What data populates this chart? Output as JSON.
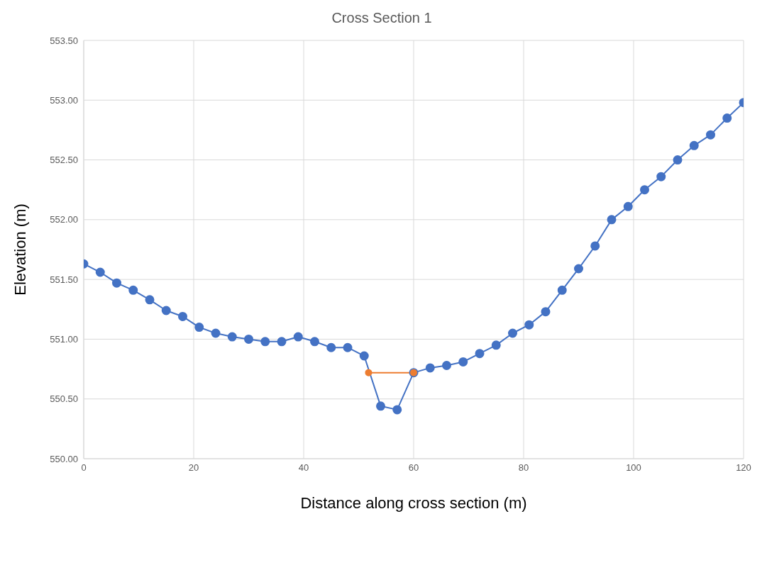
{
  "chart_data": {
    "type": "line",
    "title": "Cross Section 1",
    "xlabel": "Distance along cross section (m)",
    "ylabel": "Elevation (m)",
    "series": [
      {
        "color": "#4472c4",
        "x": [
          0,
          3,
          6,
          9,
          12,
          15,
          18,
          21,
          24,
          27,
          30,
          33,
          36,
          39,
          42,
          45,
          48,
          51,
          54,
          57,
          60,
          63,
          66,
          69,
          72,
          75,
          78,
          81,
          84,
          87,
          90,
          93,
          96,
          99,
          102,
          105,
          108,
          111,
          114,
          117,
          120
        ],
        "values": [
          551.63,
          551.56,
          551.47,
          551.41,
          551.33,
          551.24,
          551.19,
          551.1,
          551.05,
          551.02,
          551.0,
          550.98,
          550.98,
          551.02,
          550.98,
          550.93,
          550.93,
          550.86,
          550.44,
          550.41,
          550.72,
          550.76,
          550.78,
          550.81,
          550.88,
          550.95,
          551.05,
          551.12,
          551.23,
          551.41,
          551.59,
          551.78,
          552.0,
          552.11,
          552.25,
          552.36,
          552.5,
          552.62,
          552.71,
          552.85,
          552.98
        ]
      },
      {
        "color": "#ed7d31",
        "x": [
          51.8,
          60
        ],
        "values": [
          550.72,
          550.72
        ]
      }
    ],
    "xlim": [
      0,
      120
    ],
    "xticks": [
      0,
      20,
      40,
      60,
      80,
      100,
      120
    ],
    "ylim": [
      550,
      553.5
    ],
    "yticks": [
      {
        "value": 550,
        "label": "550.00"
      },
      {
        "value": 550.5,
        "label": "550.50"
      },
      {
        "value": 551,
        "label": "551.00"
      },
      {
        "value": 551.5,
        "label": "551.50"
      },
      {
        "value": 552,
        "label": "552.00"
      },
      {
        "value": 552.5,
        "label": "552.50"
      },
      {
        "value": 553,
        "label": "553.00"
      },
      {
        "value": 553.5,
        "label": "553.50"
      }
    ],
    "grid": true,
    "marker": "circle",
    "line_style": "solid"
  }
}
